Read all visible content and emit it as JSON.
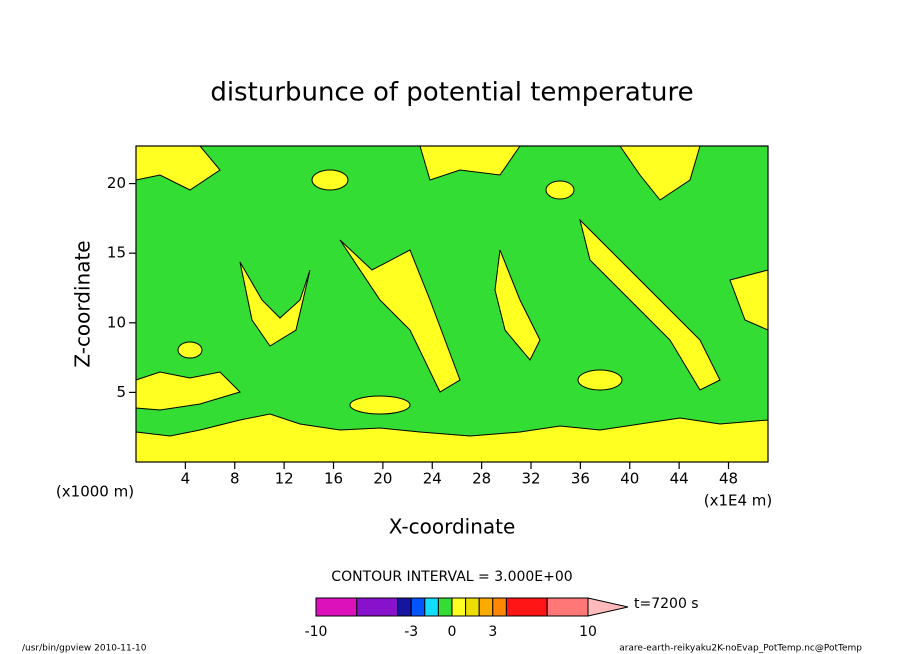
{
  "chart_data": {
    "type": "contour",
    "title": "disturbunce of potential temperature",
    "xlabel": "X-coordinate",
    "ylabel": "Z-coordinate",
    "x_unit_label": "(x1E4 m)",
    "y_unit_label": "(x1000 m)",
    "xlim": [
      0,
      51.2
    ],
    "xticks": [
      4,
      8,
      12,
      16,
      20,
      24,
      28,
      32,
      36,
      40,
      44,
      48
    ],
    "ylim": [
      0,
      22.7
    ],
    "yticks": [
      5,
      10,
      15,
      20
    ],
    "contour_interval": "CONTOUR INTERVAL = 3.000E+00",
    "colorbar": {
      "boundaries": [
        -10,
        -7,
        -4,
        -3,
        -2,
        -1,
        0,
        1,
        2,
        3,
        4,
        7,
        10
      ],
      "colors": [
        "#dd11bb",
        "#8811cc",
        "#1515a0",
        "#0055ff",
        "#11ddff",
        "#33dd33",
        "#ffff22",
        "#eedd00",
        "#ffaa00",
        "#ff8800",
        "#ff1515",
        "#ff7777"
      ],
      "extend_color": "#ffbbbb",
      "ticks": [
        -10,
        -3,
        0,
        3,
        10
      ],
      "label": "t=7200 s"
    },
    "footer_left": "/usr/bin/gpview  2010-11-10",
    "footer_right": "arare-earth-reikyaku2K-noEvap_PotTemp.nc@PotTemp"
  }
}
